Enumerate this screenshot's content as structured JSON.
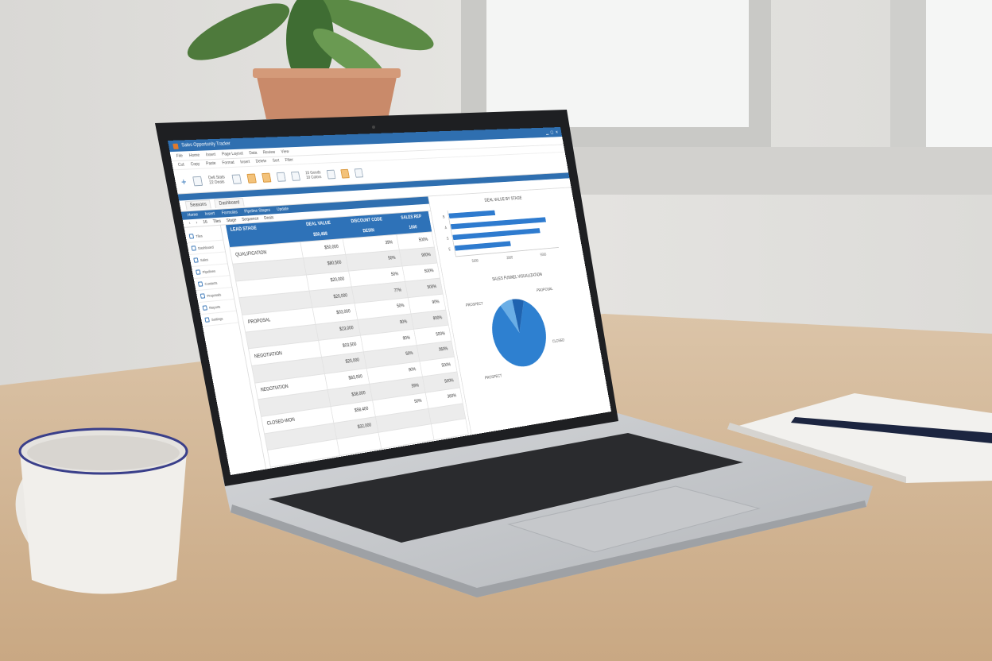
{
  "app": {
    "title": "Sales Opportunity Tracker",
    "window_controls": [
      "minimize",
      "maximize",
      "close"
    ]
  },
  "menu": [
    "File",
    "Home",
    "Insert",
    "Page Layout",
    "Data",
    "Review",
    "View"
  ],
  "tools": [
    "Cut",
    "Copy",
    "Paste",
    "Format",
    "Insert",
    "Delete",
    "Sort",
    "Filter"
  ],
  "ribbon": {
    "group1_line1": "Dell Stats",
    "group1_line2": "22 Deals",
    "group2_line1": "10 Goods",
    "group2_line2": "10 Colors"
  },
  "tabs": [
    "Seasons",
    "Dashboard"
  ],
  "subtabs": [
    "Home",
    "Insert",
    "Formulas",
    "Pipeline Stages",
    "Update"
  ],
  "crumbs": [
    "16",
    "Tiles",
    "Stage",
    "Sequence",
    "Deals"
  ],
  "sidebar": [
    "Tiles",
    "Dashboard",
    "Sales",
    "Pipelines",
    "Contacts",
    "Proposals",
    "Reports",
    "Settings"
  ],
  "table": {
    "headers": [
      "LEAD STAGE",
      "DEAL VALUE",
      "DISCOUNT CODE",
      "SALES REP"
    ],
    "subheader": [
      "",
      "$50,488",
      "DESIN",
      "1000"
    ],
    "rows": [
      [
        "QUALIFICATION",
        "$50,000",
        "39%",
        "500%"
      ],
      [
        "",
        "$80,500",
        "50%",
        "900%"
      ],
      [
        "",
        "$20,000",
        "50%",
        "500%"
      ],
      [
        "",
        "$20,000",
        "77%",
        "500%"
      ],
      [
        "PROPOSAL",
        "$03,000",
        "50%",
        "90%"
      ],
      [
        "",
        "$23,000",
        "90%",
        "900%"
      ],
      [
        "NEGOTIATION",
        "$03,500",
        "90%",
        "500%"
      ],
      [
        "",
        "$20,000",
        "50%",
        "360%"
      ],
      [
        "NEGOTIATION",
        "$83,000",
        "90%",
        "500%"
      ],
      [
        "",
        "$38,000",
        "59%",
        "500%"
      ],
      [
        "CLOSED-WON",
        "$58,400",
        "50%",
        "360%"
      ],
      [
        "",
        "$32,000",
        "",
        ""
      ],
      [
        "",
        "",
        "",
        ""
      ]
    ]
  },
  "bar_chart": {
    "title": "DEAL VALUE BY STAGE",
    "categories": [
      "B",
      "A",
      "S",
      "E"
    ],
    "values": [
      0.45,
      0.95,
      0.87,
      0.55
    ],
    "ticks": [
      "5000",
      "3500",
      "5500"
    ],
    "color": "#2e7bcf"
  },
  "pie_chart": {
    "title": "SALES FUNNEL VISUALIZATION",
    "slices": [
      {
        "label": "PROSPECT",
        "value": 0.08,
        "color": "#6aaee6"
      },
      {
        "label": "PROPOSAL",
        "value": 0.07,
        "color": "#1f63b0"
      },
      {
        "label": "CLOSED",
        "value": 0.85,
        "color": "#2e80d0"
      }
    ],
    "bottom_label": "PROSPECT"
  }
}
